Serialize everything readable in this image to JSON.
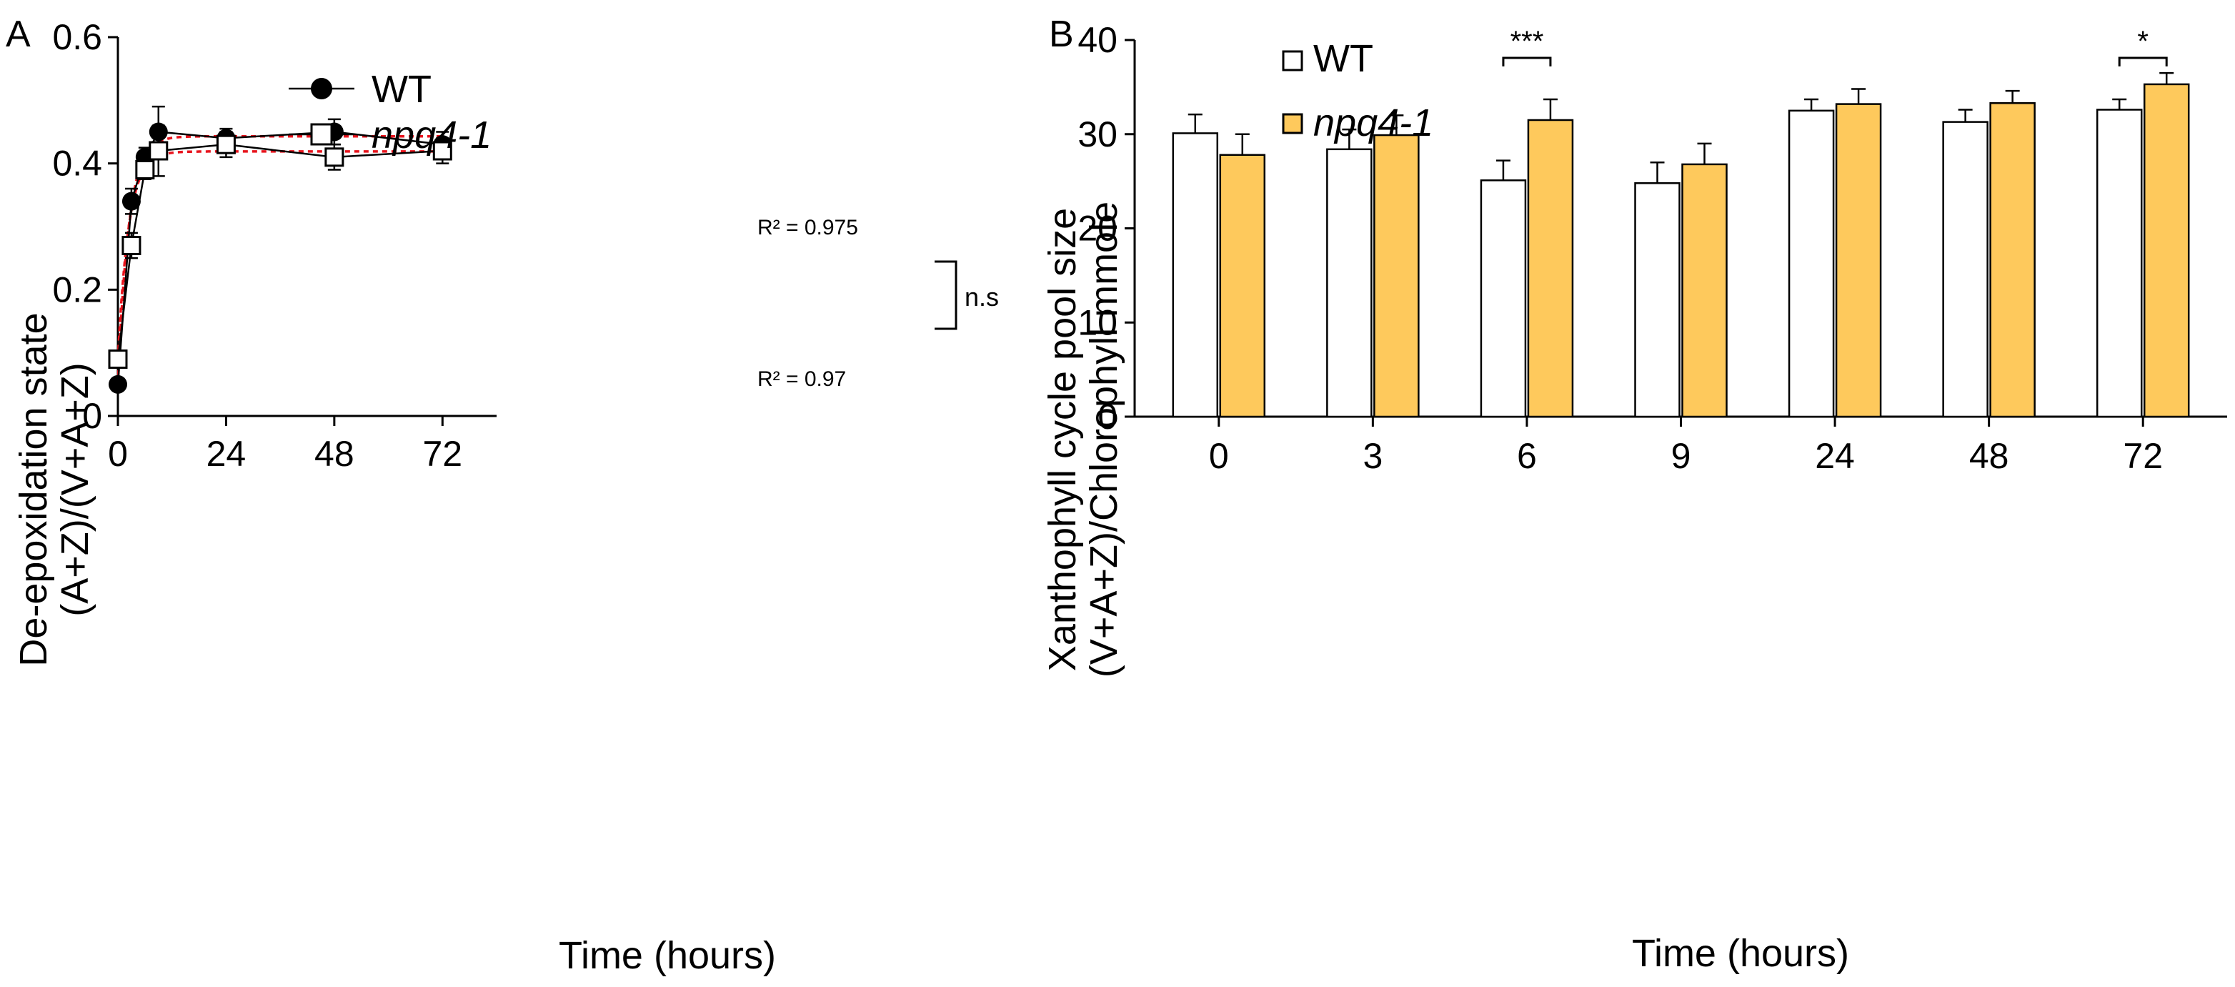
{
  "chart_data": [
    {
      "panel": "A",
      "type": "line",
      "xlabel": "Time (hours)",
      "ylabel_line1": "De-epoxidation state",
      "ylabel_line2": "(A+Z)/(V+A+Z)",
      "xlim": [
        0,
        84
      ],
      "ylim": [
        0,
        0.6
      ],
      "xticks": [
        0,
        24,
        48,
        72
      ],
      "xtick_labels": [
        "0",
        "24",
        "48",
        "72"
      ],
      "yticks": [
        0,
        0.2,
        0.4,
        0.6
      ],
      "ytick_labels": [
        "0",
        "0.2",
        "0.4",
        "0.6"
      ],
      "x": [
        0,
        3,
        6,
        9,
        24,
        48,
        72
      ],
      "series": [
        {
          "name": "WT",
          "marker": "filled-circle",
          "values": [
            0.05,
            0.34,
            0.41,
            0.45,
            0.44,
            0.45,
            0.43
          ],
          "errors": [
            0.007,
            0.02,
            0.015,
            0.04,
            0.015,
            0.02,
            0.02
          ],
          "fit_plateau": 0.443
        },
        {
          "name": "npq4-1",
          "italic": true,
          "marker": "open-square",
          "values": [
            0.09,
            0.27,
            0.39,
            0.42,
            0.43,
            0.41,
            0.42
          ],
          "errors": [
            0.01,
            0.02,
            0.015,
            0.04,
            0.02,
            0.02,
            0.02
          ],
          "fit_plateau": 0.419
        }
      ],
      "annotations": {
        "r2_wt": "R² = 0.975",
        "r2_npq": "R² = 0.97",
        "significance": "n.s"
      },
      "legend_position": "top-left"
    },
    {
      "panel": "B",
      "type": "bar",
      "xlabel": "Time (hours)",
      "ylabel_line1": "Xanthophyll cycle pool size",
      "ylabel_line2": "(V+A+Z)/Chlorophyll mmole",
      "categories": [
        "0",
        "3",
        "6",
        "9",
        "24",
        "48",
        "72"
      ],
      "ylim": [
        0,
        40
      ],
      "yticks": [
        0,
        10,
        20,
        30,
        40
      ],
      "ytick_labels": [
        "0",
        "10",
        "20",
        "30",
        "40"
      ],
      "series": [
        {
          "name": "WT",
          "color": "#ffffff",
          "values": [
            30.1,
            28.4,
            25.1,
            24.8,
            32.5,
            31.3,
            32.6
          ],
          "errors": [
            2.0,
            2.1,
            2.1,
            2.2,
            1.2,
            1.3,
            1.1
          ]
        },
        {
          "name": "npq4-1",
          "italic": true,
          "color": "#fec95c",
          "values": [
            27.8,
            29.9,
            31.5,
            26.8,
            33.2,
            33.3,
            35.3
          ],
          "errors": [
            2.2,
            2.1,
            2.2,
            2.2,
            1.6,
            1.3,
            1.2
          ]
        }
      ],
      "significance": [
        {
          "category": "6",
          "label": "***"
        },
        {
          "category": "72",
          "label": "*"
        }
      ],
      "legend_position": "top-left"
    }
  ]
}
